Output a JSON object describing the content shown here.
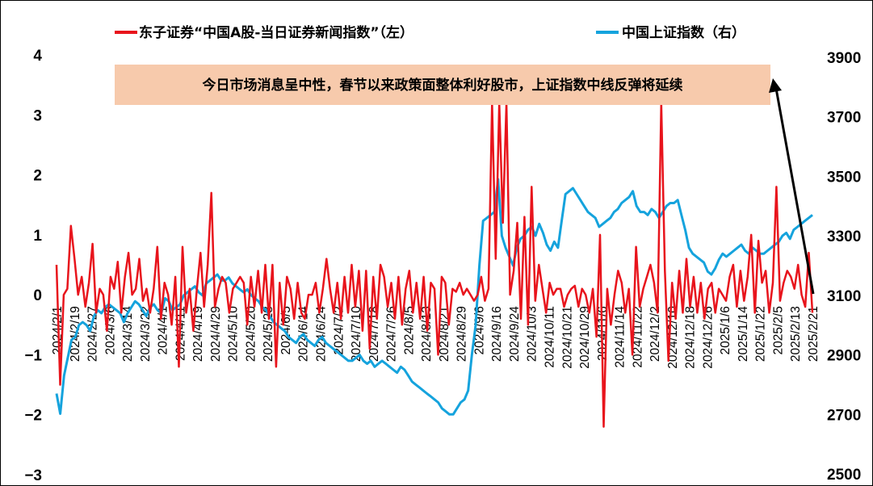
{
  "chart_data": {
    "type": "line",
    "legend": [
      {
        "name": "东子证券“中国A股-当日证券新闻指数”（左）",
        "color": "#e8141c",
        "axis": "left"
      },
      {
        "name": "中国上证指数（右）",
        "color": "#15a3dd",
        "axis": "right"
      }
    ],
    "legend_placement": "top",
    "grid": false,
    "left_axis": {
      "min": -3,
      "max": 4,
      "ticks": [
        "−3",
        "−2",
        "−1",
        "0",
        "1",
        "2",
        "3",
        "4"
      ]
    },
    "right_axis": {
      "min": 2500,
      "max": 4000,
      "ticks": [
        "2500",
        "2700",
        "2900",
        "3100",
        "3300",
        "3500",
        "3700",
        "3900"
      ]
    },
    "x_ticks": [
      "2024/2/1",
      "2024/2/19",
      "2024/2/27",
      "2024/3/6",
      "2024/3/14",
      "2024/3/22",
      "2024/4/1",
      "2024/4/11",
      "2024/4/19",
      "2024/4/29",
      "2024/5/10",
      "2024/5/20",
      "2024/5/28",
      "2024/6/5",
      "2024/6/14",
      "2024/6/24",
      "2024/7/2",
      "2024/7/10",
      "2024/7/18",
      "2024/7/26",
      "2024/8/5",
      "2024/8/13",
      "2024/8/21",
      "2024/8/29",
      "2024/9/6",
      "2024/9/16",
      "2024/9/24",
      "2024/10/3",
      "2024/10/11",
      "2024/10/21",
      "2024/10/29",
      "2024/11/6",
      "2024/11/14",
      "2024/11/22",
      "2024/12/2",
      "2024/12/10",
      "2024/12/18",
      "2024/12/26",
      "2025/1/6",
      "2025/1/14",
      "2025/1/22",
      "2025/2/5",
      "2025/2/13",
      "2025/2/21"
    ],
    "annotation": "今日市场消息呈中性，春节以来政策面整体利好股市，上证指数中线反弹将延续",
    "news_index": [
      0.5,
      -1.5,
      0,
      0.1,
      1.15,
      0.6,
      0,
      0.3,
      -0.2,
      0.2,
      0.85,
      -0.3,
      0.1,
      0,
      -0.6,
      0.3,
      0.1,
      0.55,
      -0.3,
      0.3,
      0.7,
      0,
      0.1,
      0.6,
      -0.1,
      0.1,
      -0.3,
      0.1,
      0.8,
      -0.4,
      0.2,
      0,
      -0.5,
      0.3,
      -1.2,
      0.8,
      -0.3,
      0.1,
      -0.6,
      0.1,
      0.7,
      -0.2,
      0.5,
      1.7,
      -0.2,
      0.1,
      0.3,
      0.2,
      -0.3,
      0.1,
      0.2,
      0.3,
      0.2,
      -0.5,
      0.3,
      -0.2,
      0.4,
      -0.3,
      0.5,
      -0.4,
      0.5,
      -1.2,
      0.2,
      -0.5,
      0.3,
      0.1,
      -0.4,
      0.2,
      -0.3,
      -0.4,
      0,
      0,
      0.2,
      -0.3,
      0.1,
      0.6,
      0.1,
      -0.3,
      0.2,
      -0.4,
      0.3,
      -0.3,
      0.5,
      -0.2,
      0.4,
      -0.6,
      0.4,
      -0.9,
      0.3,
      -0.4,
      0.5,
      0.3,
      -0.2,
      0.2,
      -0.4,
      0.3,
      -0.5,
      0.1,
      0.4,
      -0.3,
      0.2,
      -0.4,
      0.3,
      -0.6,
      0.2,
      0.1,
      -1,
      0.3,
      0.2,
      -0.5,
      0.1,
      0.05,
      0.2,
      0,
      0.1,
      0,
      -0.1,
      0,
      0.3,
      -0.1,
      0.1,
      3.2,
      0.6,
      3.2,
      1.2,
      3.2,
      0,
      0.4,
      1.2,
      -0.4,
      1.3,
      -0.5,
      1.8,
      -0.1,
      0.5,
      0.1,
      -0.3,
      0.2,
      0,
      0.1,
      0.1,
      -0.2,
      0,
      0.1,
      0.15,
      -0.2,
      0.1,
      0,
      -0.3,
      0.1,
      -0.7,
      1,
      -2.2,
      0.1,
      -0.5,
      0,
      0.4,
      0.2,
      -0.3,
      0.1,
      -1,
      0.8,
      -0.2,
      0.1,
      0.3,
      0.5,
      0.2,
      -0.3,
      3.2,
      0.4,
      -1.1,
      0.2,
      -0.4,
      0.4,
      -0.3,
      0.6,
      -0.2,
      0.3,
      -0.3,
      0.2,
      -0.4,
      0.1,
      0.2,
      -0.3,
      0.1,
      0,
      -0.1,
      0.3,
      0.5,
      -0.2,
      0.4,
      -0.1,
      0.3,
      1,
      -0.3,
      0.9,
      0.2,
      0.4,
      -0.3,
      0.2,
      1.8,
      -0.1,
      0.2,
      0.4,
      0.3,
      0.1,
      0.5,
      0,
      -0.2,
      0.7,
      -0.3
    ],
    "shanghai_index": [
      2770,
      2702,
      2830,
      2890,
      2950,
      2960,
      3000,
      3010,
      3000,
      2980,
      3030,
      3050,
      3040,
      3060,
      3070,
      3060,
      3050,
      3040,
      3010,
      3040,
      3060,
      3080,
      3070,
      3050,
      3030,
      3060,
      3070,
      3050,
      3040,
      3090,
      3080,
      3050,
      3060,
      3070,
      3100,
      3110,
      3120,
      3130,
      3110,
      3100,
      3140,
      3150,
      3160,
      3170,
      3150,
      3150,
      3160,
      3140,
      3130,
      3120,
      3110,
      3120,
      3100,
      3090,
      3080,
      3060,
      3050,
      3030,
      3010,
      3000,
      2990,
      2980,
      2960,
      2950,
      2940,
      2960,
      2970,
      2950,
      2940,
      2930,
      2950,
      2960,
      2940,
      2930,
      2920,
      2910,
      2900,
      2890,
      2880,
      2880,
      2890,
      2900,
      2880,
      2870,
      2880,
      2860,
      2870,
      2880,
      2870,
      2860,
      2850,
      2840,
      2860,
      2850,
      2830,
      2810,
      2800,
      2790,
      2780,
      2770,
      2760,
      2750,
      2740,
      2720,
      2710,
      2700,
      2700,
      2720,
      2740,
      2750,
      2780,
      2900,
      3000,
      3200,
      3350,
      3360,
      3370,
      3380,
      3490,
      3300,
      3260,
      3230,
      3200,
      3260,
      3290,
      3300,
      3320,
      3330,
      3300,
      3340,
      3310,
      3270,
      3250,
      3280,
      3260,
      3350,
      3440,
      3450,
      3460,
      3440,
      3420,
      3400,
      3380,
      3370,
      3360,
      3330,
      3340,
      3350,
      3360,
      3380,
      3390,
      3410,
      3420,
      3430,
      3450,
      3400,
      3380,
      3380,
      3370,
      3390,
      3380,
      3360,
      3380,
      3400,
      3410,
      3410,
      3420,
      3370,
      3320,
      3260,
      3240,
      3230,
      3220,
      3210,
      3180,
      3170,
      3190,
      3220,
      3240,
      3230,
      3240,
      3250,
      3260,
      3270,
      3250,
      3240,
      3260,
      3250,
      3240,
      3240,
      3250,
      3260,
      3270,
      3280,
      3300,
      3310,
      3290,
      3320,
      3330,
      3340,
      3350,
      3360,
      3370
    ]
  }
}
